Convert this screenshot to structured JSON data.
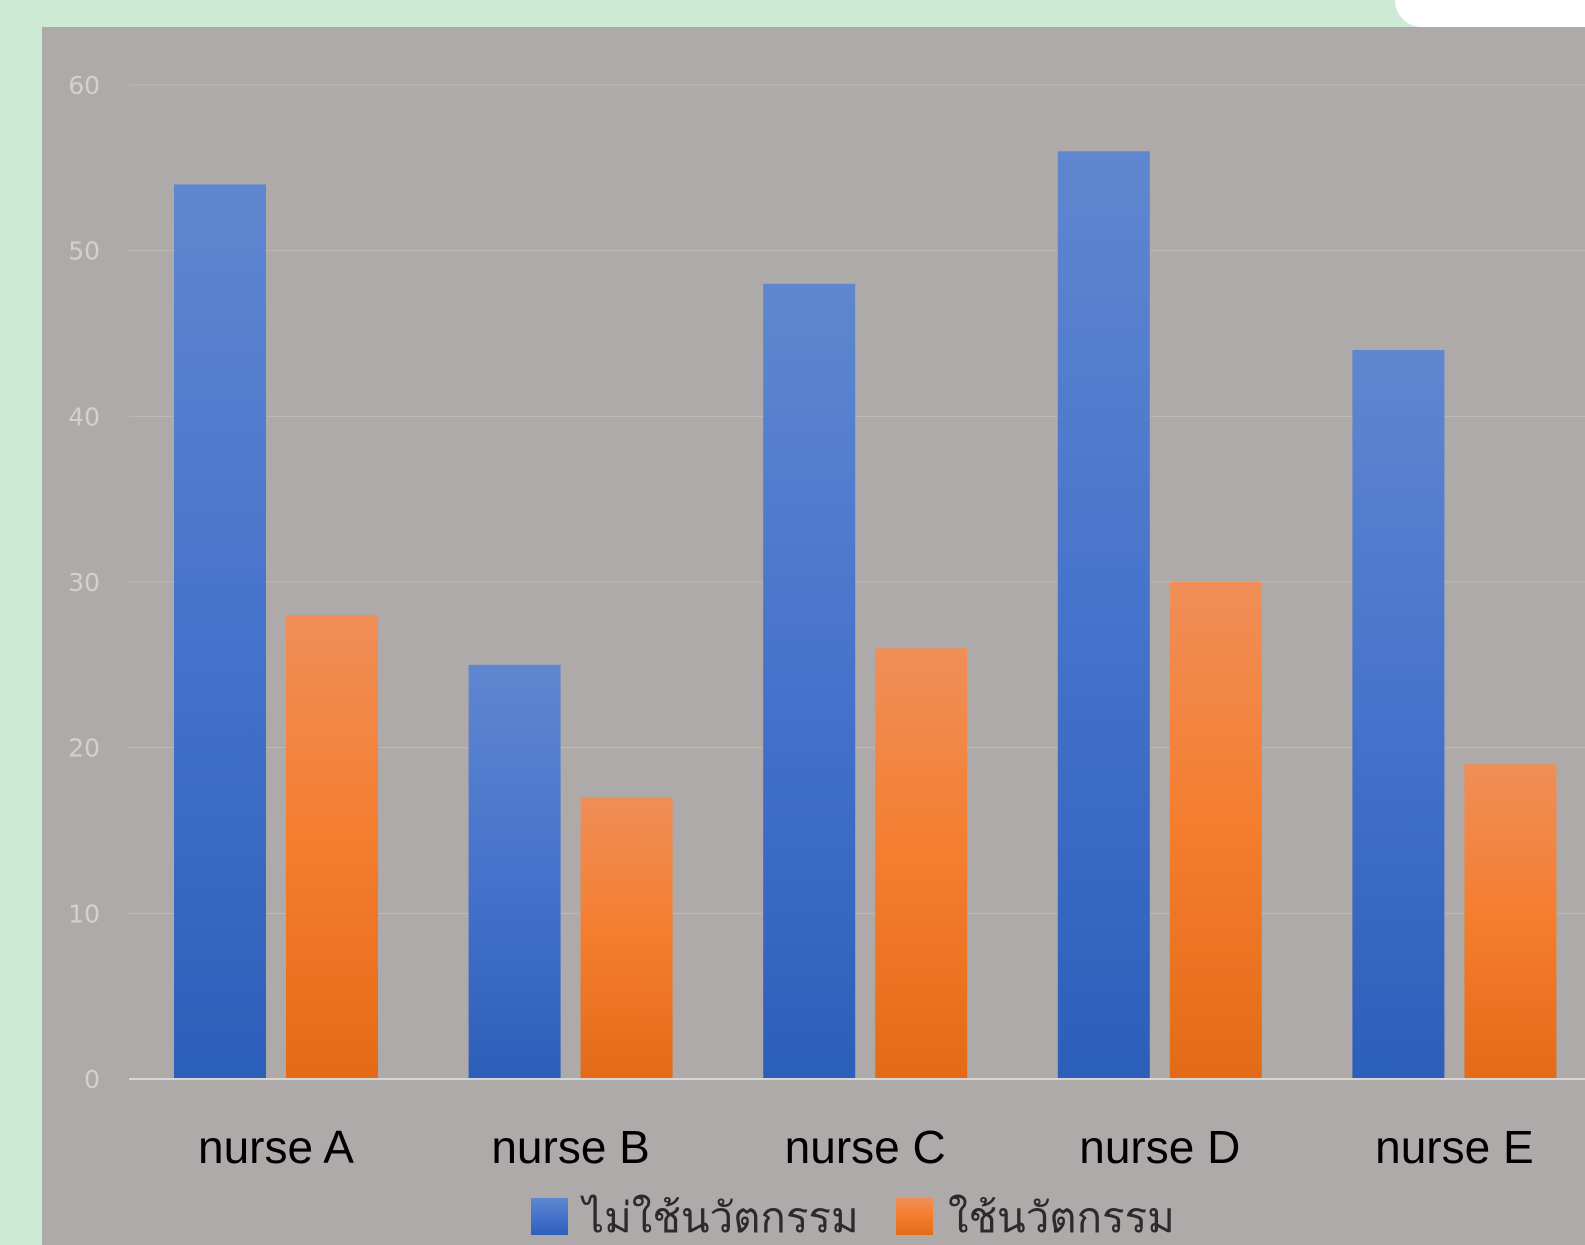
{
  "chart_data": {
    "type": "bar",
    "categories": [
      "nurse A",
      "nurse B",
      "nurse C",
      "nurse D",
      "nurse E"
    ],
    "series": [
      {
        "name": "ไม่ใช้นวัตกรรม",
        "values": [
          54,
          25,
          48,
          56,
          44
        ],
        "color": "#4472c4"
      },
      {
        "name": "ใช้นวัตกรรม",
        "values": [
          28,
          17,
          26,
          30,
          19
        ],
        "color": "#ed7d31"
      }
    ],
    "ylim": [
      0,
      60
    ],
    "yticks": [
      "0",
      "10",
      "20",
      "30",
      "40",
      "50",
      "60"
    ],
    "grid": true,
    "legend_position": "bottom"
  }
}
